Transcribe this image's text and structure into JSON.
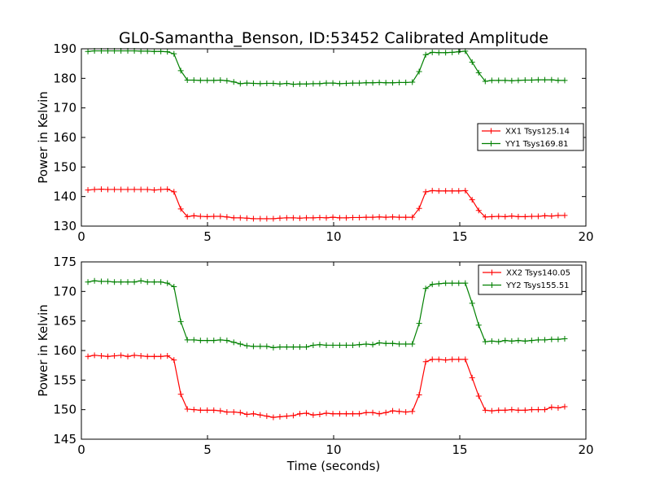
{
  "chart_data": [
    {
      "type": "line",
      "title": "GL0-Samantha_Benson, ID:53452 Calibrated Amplitude",
      "xlabel": "",
      "ylabel": "Power in Kelvin",
      "xlim": [
        0,
        20
      ],
      "ylim": [
        130,
        190
      ],
      "xticks": [
        0,
        5,
        10,
        15,
        20
      ],
      "yticks": [
        130,
        140,
        150,
        160,
        170,
        180,
        190
      ],
      "legend": "center-right",
      "series": [
        {
          "name": "XX1 Tsys125.14",
          "color": "#ff0000",
          "x": [
            0.26,
            0.52,
            0.79,
            1.05,
            1.31,
            1.57,
            1.84,
            2.1,
            2.36,
            2.62,
            2.89,
            3.15,
            3.41,
            3.67,
            3.94,
            4.2,
            4.46,
            4.72,
            4.99,
            5.25,
            5.51,
            5.77,
            6.04,
            6.3,
            6.56,
            6.82,
            7.09,
            7.35,
            7.61,
            7.87,
            8.14,
            8.4,
            8.66,
            8.92,
            9.19,
            9.45,
            9.71,
            9.97,
            10.24,
            10.5,
            10.76,
            11.02,
            11.29,
            11.55,
            11.81,
            12.07,
            12.34,
            12.6,
            12.86,
            13.12,
            13.39,
            13.65,
            13.91,
            14.17,
            14.44,
            14.7,
            14.96,
            15.22,
            15.49,
            15.75,
            16.01,
            16.27,
            16.54,
            16.8,
            17.06,
            17.32,
            17.59,
            17.85,
            18.11,
            18.37,
            18.64,
            18.9,
            19.16
          ],
          "values": [
            142.2,
            142.4,
            142.5,
            142.4,
            142.4,
            142.4,
            142.4,
            142.4,
            142.4,
            142.4,
            142.2,
            142.4,
            142.5,
            141.6,
            135.8,
            133.2,
            133.5,
            133.3,
            133.2,
            133.3,
            133.3,
            133.1,
            132.8,
            132.8,
            132.7,
            132.5,
            132.5,
            132.5,
            132.5,
            132.7,
            132.8,
            132.8,
            132.7,
            132.8,
            132.8,
            132.9,
            132.8,
            133.0,
            132.8,
            132.8,
            132.9,
            132.9,
            133.0,
            133.0,
            133.1,
            133.0,
            133.1,
            133.0,
            133.0,
            133.0,
            136.0,
            141.6,
            142.0,
            141.9,
            141.9,
            141.9,
            141.9,
            142.0,
            138.9,
            135.3,
            133.1,
            133.2,
            133.3,
            133.2,
            133.4,
            133.2,
            133.2,
            133.3,
            133.3,
            133.5,
            133.4,
            133.6,
            133.6
          ]
        },
        {
          "name": "YY1 Tsys169.81",
          "color": "#008000",
          "x": [
            0.26,
            0.52,
            0.79,
            1.05,
            1.31,
            1.57,
            1.84,
            2.1,
            2.36,
            2.62,
            2.89,
            3.15,
            3.41,
            3.67,
            3.94,
            4.2,
            4.46,
            4.72,
            4.99,
            5.25,
            5.51,
            5.77,
            6.04,
            6.3,
            6.56,
            6.82,
            7.09,
            7.35,
            7.61,
            7.87,
            8.14,
            8.4,
            8.66,
            8.92,
            9.19,
            9.45,
            9.71,
            9.97,
            10.24,
            10.5,
            10.76,
            11.02,
            11.29,
            11.55,
            11.81,
            12.07,
            12.34,
            12.6,
            12.86,
            13.12,
            13.39,
            13.65,
            13.91,
            14.17,
            14.44,
            14.7,
            14.96,
            15.22,
            15.49,
            15.75,
            16.01,
            16.27,
            16.54,
            16.8,
            17.06,
            17.32,
            17.59,
            17.85,
            18.11,
            18.37,
            18.64,
            18.9,
            19.16
          ],
          "values": [
            189.1,
            189.3,
            189.3,
            189.3,
            189.3,
            189.3,
            189.3,
            189.3,
            189.2,
            189.2,
            189.1,
            189.1,
            189.0,
            188.3,
            182.6,
            179.4,
            179.4,
            179.3,
            179.3,
            179.3,
            179.4,
            179.2,
            178.8,
            178.2,
            178.4,
            178.3,
            178.2,
            178.3,
            178.3,
            178.1,
            178.3,
            178.0,
            178.1,
            178.1,
            178.2,
            178.2,
            178.4,
            178.4,
            178.2,
            178.3,
            178.4,
            178.4,
            178.5,
            178.5,
            178.6,
            178.5,
            178.5,
            178.6,
            178.6,
            178.7,
            182.3,
            188.0,
            188.8,
            188.7,
            188.7,
            188.8,
            189.0,
            189.2,
            185.5,
            181.9,
            179.0,
            179.3,
            179.3,
            179.3,
            179.2,
            179.3,
            179.4,
            179.4,
            179.5,
            179.5,
            179.5,
            179.3,
            179.3
          ]
        }
      ]
    },
    {
      "type": "line",
      "title": "",
      "xlabel": "Time (seconds)",
      "ylabel": "Power in Kelvin",
      "xlim": [
        0,
        20
      ],
      "ylim": [
        145,
        175
      ],
      "xticks": [
        0,
        5,
        10,
        15,
        20
      ],
      "yticks": [
        145,
        150,
        155,
        160,
        165,
        170,
        175
      ],
      "legend": "top-right",
      "series": [
        {
          "name": "XX2 Tsys140.05",
          "color": "#ff0000",
          "x": [
            0.26,
            0.52,
            0.79,
            1.05,
            1.31,
            1.57,
            1.84,
            2.1,
            2.36,
            2.62,
            2.89,
            3.15,
            3.41,
            3.67,
            3.94,
            4.2,
            4.46,
            4.72,
            4.99,
            5.25,
            5.51,
            5.77,
            6.04,
            6.3,
            6.56,
            6.82,
            7.09,
            7.35,
            7.61,
            7.87,
            8.14,
            8.4,
            8.66,
            8.92,
            9.19,
            9.45,
            9.71,
            9.97,
            10.24,
            10.5,
            10.76,
            11.02,
            11.29,
            11.55,
            11.81,
            12.07,
            12.34,
            12.6,
            12.86,
            13.12,
            13.39,
            13.65,
            13.91,
            14.17,
            14.44,
            14.7,
            14.96,
            15.22,
            15.49,
            15.75,
            16.01,
            16.27,
            16.54,
            16.8,
            17.06,
            17.32,
            17.59,
            17.85,
            18.11,
            18.37,
            18.64,
            18.9,
            19.16
          ],
          "values": [
            159.0,
            159.2,
            159.1,
            159.0,
            159.1,
            159.2,
            159.0,
            159.2,
            159.1,
            159.0,
            159.0,
            159.0,
            159.1,
            158.4,
            152.6,
            150.1,
            150.0,
            149.9,
            149.9,
            149.9,
            149.8,
            149.6,
            149.6,
            149.5,
            149.2,
            149.3,
            149.1,
            148.9,
            148.7,
            148.8,
            148.9,
            149.0,
            149.3,
            149.4,
            149.1,
            149.2,
            149.4,
            149.3,
            149.3,
            149.3,
            149.3,
            149.3,
            149.5,
            149.5,
            149.3,
            149.5,
            149.8,
            149.7,
            149.6,
            149.7,
            152.5,
            158.1,
            158.5,
            158.5,
            158.4,
            158.5,
            158.5,
            158.5,
            155.4,
            152.3,
            149.9,
            149.8,
            149.9,
            149.9,
            150.0,
            149.9,
            149.9,
            150.0,
            150.0,
            150.0,
            150.4,
            150.3,
            150.5
          ]
        },
        {
          "name": "YY2 Tsys155.51",
          "color": "#008000",
          "x": [
            0.26,
            0.52,
            0.79,
            1.05,
            1.31,
            1.57,
            1.84,
            2.1,
            2.36,
            2.62,
            2.89,
            3.15,
            3.41,
            3.67,
            3.94,
            4.2,
            4.46,
            4.72,
            4.99,
            5.25,
            5.51,
            5.77,
            6.04,
            6.3,
            6.56,
            6.82,
            7.09,
            7.35,
            7.61,
            7.87,
            8.14,
            8.4,
            8.66,
            8.92,
            9.19,
            9.45,
            9.71,
            9.97,
            10.24,
            10.5,
            10.76,
            11.02,
            11.29,
            11.55,
            11.81,
            12.07,
            12.34,
            12.6,
            12.86,
            13.12,
            13.39,
            13.65,
            13.91,
            14.17,
            14.44,
            14.7,
            14.96,
            15.22,
            15.49,
            15.75,
            16.01,
            16.27,
            16.54,
            16.8,
            17.06,
            17.32,
            17.59,
            17.85,
            18.11,
            18.37,
            18.64,
            18.9,
            19.16
          ],
          "values": [
            171.6,
            171.8,
            171.7,
            171.7,
            171.6,
            171.6,
            171.6,
            171.6,
            171.8,
            171.6,
            171.6,
            171.6,
            171.4,
            170.8,
            164.9,
            161.8,
            161.8,
            161.7,
            161.7,
            161.7,
            161.8,
            161.7,
            161.4,
            161.1,
            160.8,
            160.7,
            160.7,
            160.7,
            160.5,
            160.6,
            160.6,
            160.6,
            160.6,
            160.6,
            160.9,
            161.0,
            160.9,
            160.9,
            160.9,
            160.9,
            160.9,
            161.0,
            161.1,
            161.0,
            161.3,
            161.2,
            161.2,
            161.1,
            161.1,
            161.1,
            164.6,
            170.5,
            171.2,
            171.3,
            171.4,
            171.4,
            171.4,
            171.4,
            168.0,
            164.3,
            161.5,
            161.6,
            161.5,
            161.7,
            161.6,
            161.7,
            161.6,
            161.7,
            161.8,
            161.8,
            161.9,
            161.9,
            162.0
          ]
        }
      ]
    }
  ]
}
